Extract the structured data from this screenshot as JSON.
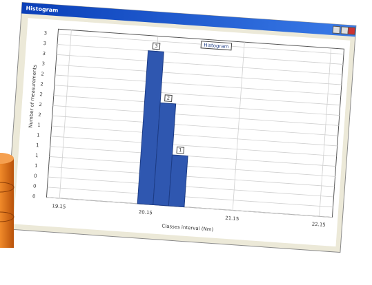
{
  "window": {
    "title": "Histogram"
  },
  "chart_data": {
    "type": "histogram",
    "title": "Histogram",
    "bins": [
      20.05,
      20.23,
      20.41,
      20.59
    ],
    "values": [
      3,
      2,
      1
    ],
    "color": "#2f57b0",
    "xlabel": "Classes interval (Nm)",
    "ylabel": "Number of measurements",
    "xlim": [
      19.0,
      22.3
    ],
    "xticks": [
      19.15,
      20.15,
      21.15,
      22.15
    ],
    "ylim": [
      0,
      3.3
    ],
    "yticks": [
      {
        "value": 0,
        "label": "0"
      },
      {
        "value": 0.2,
        "label": "0"
      },
      {
        "value": 0.4,
        "label": "0"
      },
      {
        "value": 0.6,
        "label": "1"
      },
      {
        "value": 0.8,
        "label": "1"
      },
      {
        "value": 1.0,
        "label": "1"
      },
      {
        "value": 1.2,
        "label": "1"
      },
      {
        "value": 1.4,
        "label": "1"
      },
      {
        "value": 1.6,
        "label": "2"
      },
      {
        "value": 1.8,
        "label": "2"
      },
      {
        "value": 2.0,
        "label": "2"
      },
      {
        "value": 2.2,
        "label": "2"
      },
      {
        "value": 2.4,
        "label": "2"
      },
      {
        "value": 2.6,
        "label": "3"
      },
      {
        "value": 2.8,
        "label": "3"
      },
      {
        "value": 3.0,
        "label": "3"
      },
      {
        "value": 3.2,
        "label": "3"
      }
    ],
    "grid": true
  }
}
